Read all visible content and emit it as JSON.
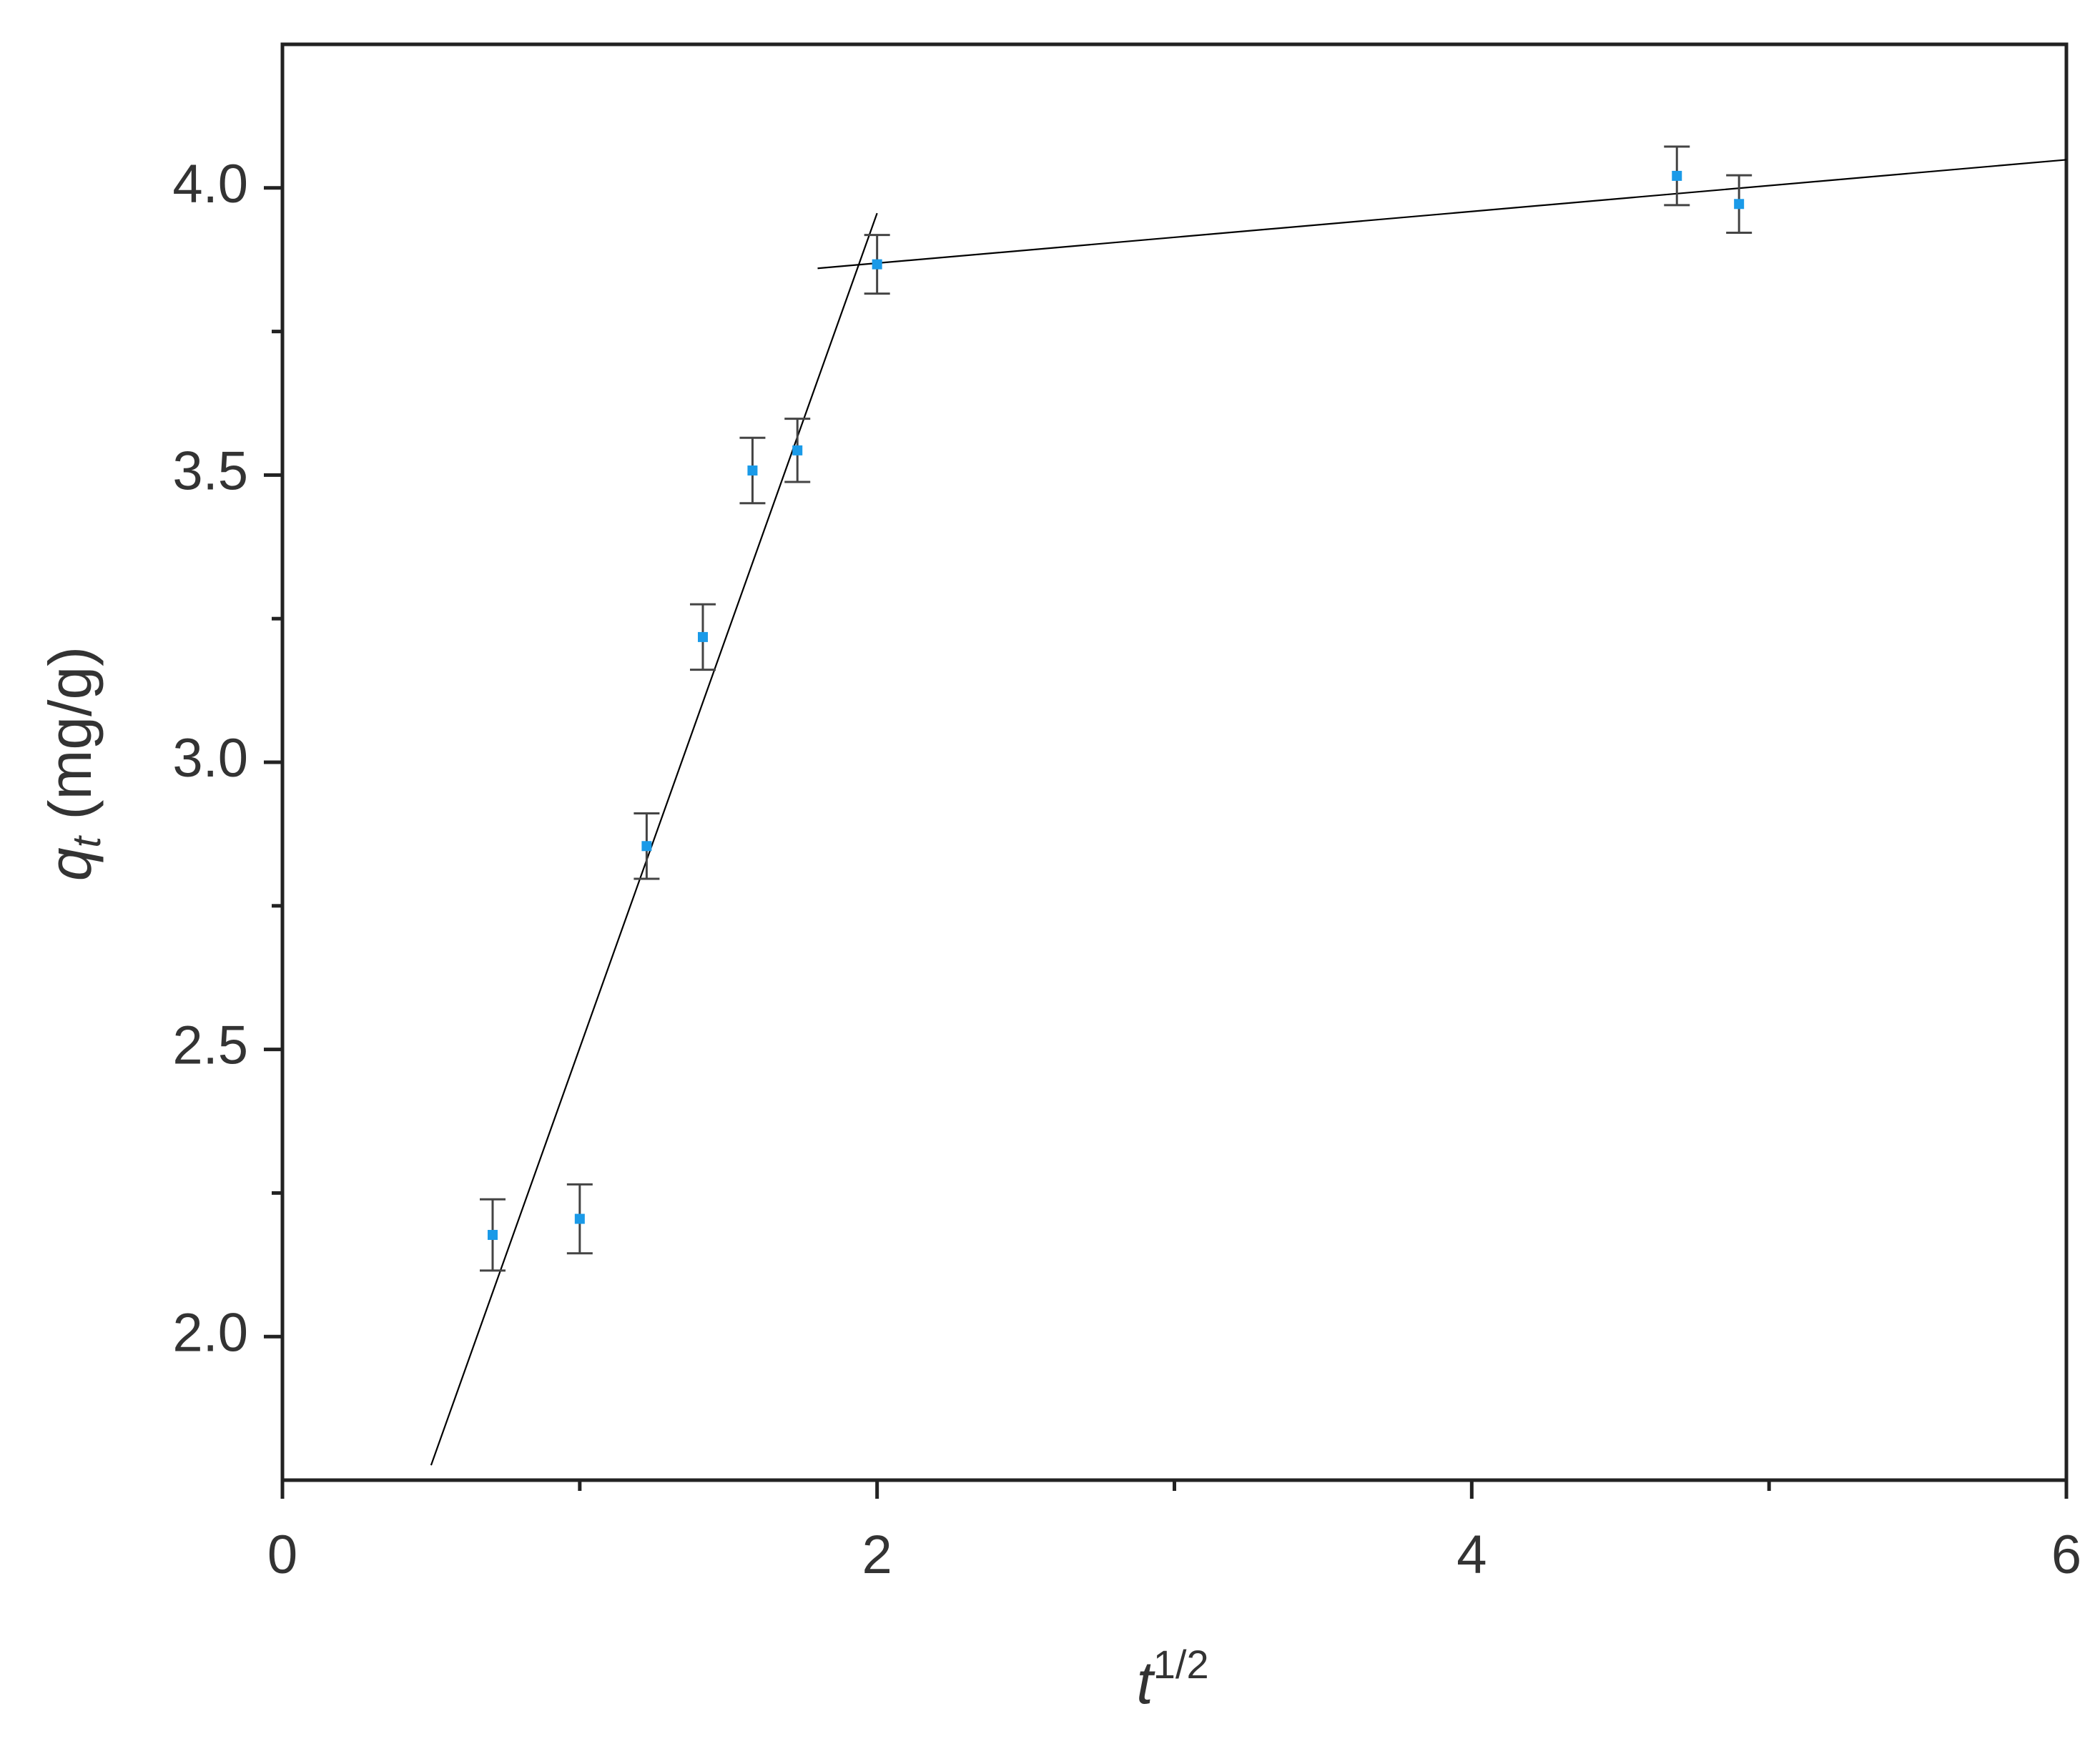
{
  "chart_data": {
    "type": "scatter",
    "xlabel": {
      "symbol": "t",
      "superscript": "1/2"
    },
    "ylabel": {
      "symbol": "q",
      "subscript": "t",
      "unit": "(mg/g)"
    },
    "series": [
      {
        "color": "#1a9ae8",
        "x": [
          0.707,
          1.0,
          1.225,
          1.414,
          1.581,
          1.732,
          2.0,
          4.69,
          4.899
        ],
        "values": [
          2.177,
          2.205,
          2.854,
          3.218,
          3.508,
          3.543,
          3.867,
          4.021,
          3.972
        ],
        "errors": [
          0.062,
          0.06,
          0.057,
          0.057,
          0.057,
          0.055,
          0.051,
          0.051,
          0.05
        ],
        "error_color": "#444444"
      }
    ],
    "lines": [
      {
        "color": "#000000",
        "x": [
          0.5,
          2.0
        ],
        "values": [
          1.776,
          3.956
        ]
      },
      {
        "color": "#000000",
        "x": [
          1.8,
          6.0
        ],
        "values": [
          3.86,
          4.049
        ]
      }
    ],
    "xlim": [
      0,
      6
    ],
    "xticks": [
      0,
      2,
      4,
      6
    ],
    "xminor": [
      1,
      3,
      5
    ],
    "ylim": [
      1.75,
      4.25
    ],
    "yticks": [
      {
        "value": 2,
        "label": "2.0"
      },
      {
        "value": 2.5,
        "label": "2.5"
      },
      {
        "value": 3,
        "label": "3.0"
      },
      {
        "value": 3.5,
        "label": "3.5"
      },
      {
        "value": 4,
        "label": "4.0"
      }
    ],
    "yminor": [
      2.25,
      2.75,
      3.25,
      3.75
    ],
    "grid": false
  }
}
